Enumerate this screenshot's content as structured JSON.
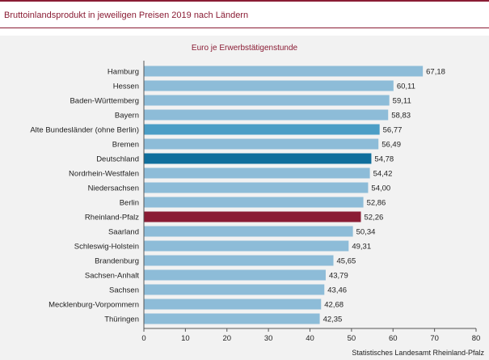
{
  "header": {
    "title": "Bruttoinlandsprodukt  in jeweiligen  Preisen 2019 nach Ländern"
  },
  "source": "Statistisches Landesamt Rheinland-Pfalz",
  "colors": {
    "accent": "#8a1c34",
    "bar_default": "#8dbcd8",
    "bar_alte_bl": "#4b9ec6",
    "bar_deutschland": "#0f6e9c",
    "bar_rlp": "#8a1c34"
  },
  "chart_data": {
    "type": "bar",
    "orientation": "horizontal",
    "title": "Euro je Erwerbstätigenstunde",
    "xlabel": "",
    "ylabel": "",
    "xlim": [
      0,
      80
    ],
    "xticks": [
      0,
      10,
      20,
      30,
      40,
      50,
      60,
      70,
      80
    ],
    "grid": false,
    "categories": [
      "Hamburg",
      "Hessen",
      "Baden-Württemberg",
      "Bayern",
      "Alte Bundesländer (ohne Berlin)",
      "Bremen",
      "Deutschland",
      "Nordrhein-Westfalen",
      "Niedersachsen",
      "Berlin",
      "Rheinland-Pfalz",
      "Saarland",
      "Schleswig-Holstein",
      "Brandenburg",
      "Sachsen-Anhalt",
      "Sachsen",
      "Mecklenburg-Vorpommern",
      "Thüringen"
    ],
    "values": [
      67.18,
      60.11,
      59.11,
      58.83,
      56.77,
      56.49,
      54.78,
      54.42,
      54.0,
      52.86,
      52.26,
      50.34,
      49.31,
      45.65,
      43.79,
      43.46,
      42.68,
      42.35
    ],
    "value_labels": [
      "67,18",
      "60,11",
      "59,11",
      "58,83",
      "56,77",
      "56,49",
      "54,78",
      "54,42",
      "54,00",
      "52,86",
      "52,26",
      "50,34",
      "49,31",
      "45,65",
      "43,79",
      "43,46",
      "42,68",
      "42,35"
    ],
    "highlight": {
      "Alte Bundesländer (ohne Berlin)": "#4b9ec6",
      "Deutschland": "#0f6e9c",
      "Rheinland-Pfalz": "#8a1c34"
    }
  }
}
